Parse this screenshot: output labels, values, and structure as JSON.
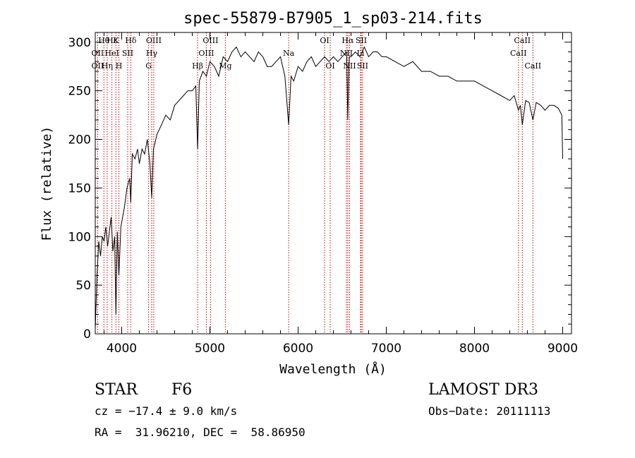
{
  "chart_data": {
    "type": "line",
    "title": "spec-55879-B7905_1_sp03-214.fits",
    "xlabel": "Wavelength (Å)",
    "ylabel": "Flux (relative)",
    "xlim": [
      3700,
      9100
    ],
    "ylim": [
      0,
      310
    ],
    "xticks": [
      4000,
      5000,
      6000,
      7000,
      8000,
      9000
    ],
    "yticks": [
      0,
      50,
      100,
      150,
      200,
      250,
      300
    ],
    "grid": false,
    "series": [
      {
        "x": [
          3700,
          3720,
          3740,
          3760,
          3780,
          3800,
          3820,
          3840,
          3860,
          3880,
          3900,
          3920,
          3934,
          3950,
          3968,
          3990,
          4010,
          4030,
          4060,
          4090,
          4102,
          4120,
          4150,
          4180,
          4200,
          4230,
          4260,
          4290,
          4320,
          4340,
          4360,
          4400,
          4450,
          4500,
          4550,
          4600,
          4650,
          4700,
          4750,
          4800,
          4840,
          4861,
          4880,
          4920,
          4960,
          5000,
          5050,
          5100,
          5150,
          5200,
          5250,
          5300,
          5350,
          5400,
          5450,
          5500,
          5550,
          5600,
          5650,
          5700,
          5750,
          5800,
          5850,
          5893,
          5920,
          5950,
          6000,
          6050,
          6100,
          6150,
          6200,
          6250,
          6300,
          6350,
          6400,
          6450,
          6500,
          6550,
          6563,
          6580,
          6600,
          6650,
          6700,
          6750,
          6800,
          6850,
          6900,
          6950,
          7000,
          7100,
          7200,
          7300,
          7400,
          7500,
          7600,
          7700,
          7800,
          7900,
          8000,
          8100,
          8200,
          8300,
          8400,
          8450,
          8498,
          8520,
          8542,
          8580,
          8620,
          8662,
          8700,
          8750,
          8800,
          8850,
          8900,
          8950,
          8990,
          9000
        ],
        "y": [
          5,
          60,
          95,
          80,
          100,
          95,
          110,
          90,
          105,
          120,
          85,
          100,
          20,
          105,
          60,
          110,
          120,
          130,
          150,
          160,
          135,
          185,
          180,
          190,
          175,
          190,
          185,
          200,
          175,
          140,
          190,
          205,
          215,
          225,
          220,
          235,
          240,
          245,
          250,
          250,
          255,
          190,
          260,
          270,
          265,
          280,
          275,
          265,
          285,
          280,
          290,
          295,
          285,
          290,
          285,
          280,
          290,
          285,
          275,
          275,
          280,
          285,
          265,
          215,
          265,
          260,
          275,
          270,
          280,
          285,
          275,
          280,
          285,
          280,
          285,
          280,
          285,
          290,
          220,
          285,
          285,
          290,
          285,
          295,
          285,
          290,
          290,
          285,
          285,
          280,
          275,
          280,
          270,
          270,
          265,
          265,
          260,
          260,
          260,
          255,
          250,
          245,
          240,
          245,
          230,
          235,
          215,
          240,
          238,
          220,
          238,
          235,
          230,
          235,
          235,
          232,
          225,
          180
        ]
      }
    ],
    "line_labels": [
      {
        "text": "Hθ",
        "x": 3798,
        "row": 0
      },
      {
        "text": "OII",
        "x": 3727,
        "row": 1
      },
      {
        "text": "OII",
        "x": 3727,
        "row": 2
      },
      {
        "text": "Hη",
        "x": 3835,
        "row": 2
      },
      {
        "text": "Hε",
        "x": 3890,
        "row": 0
      },
      {
        "text": "HeI",
        "x": 3889,
        "row": 1
      },
      {
        "text": "K",
        "x": 3934,
        "row": 0
      },
      {
        "text": "H",
        "x": 3968,
        "row": 2
      },
      {
        "text": "SII",
        "x": 4068,
        "row": 1
      },
      {
        "text": "Hδ",
        "x": 4102,
        "row": 0
      },
      {
        "text": "OIII",
        "x": 4363,
        "row": 0
      },
      {
        "text": "Hγ",
        "x": 4340,
        "row": 1
      },
      {
        "text": "G",
        "x": 4305,
        "row": 2
      },
      {
        "text": "OIII",
        "x": 5007,
        "row": 0
      },
      {
        "text": "OIII",
        "x": 4959,
        "row": 1
      },
      {
        "text": "Hβ",
        "x": 4861,
        "row": 2
      },
      {
        "text": "Mg",
        "x": 5175,
        "row": 2
      },
      {
        "text": "Na",
        "x": 5893,
        "row": 1
      },
      {
        "text": "OI",
        "x": 6300,
        "row": 0
      },
      {
        "text": "OI",
        "x": 6364,
        "row": 2
      },
      {
        "text": "Hα",
        "x": 6563,
        "row": 0
      },
      {
        "text": "NII",
        "x": 6548,
        "row": 1
      },
      {
        "text": "NII",
        "x": 6583,
        "row": 2
      },
      {
        "text": "SII",
        "x": 6716,
        "row": 0
      },
      {
        "text": "Li",
        "x": 6708,
        "row": 1
      },
      {
        "text": "SII",
        "x": 6731,
        "row": 2
      },
      {
        "text": "CaII",
        "x": 8542,
        "row": 0
      },
      {
        "text": "CaII",
        "x": 8498,
        "row": 1
      },
      {
        "text": "CaII",
        "x": 8662,
        "row": 2
      }
    ],
    "line_markers": [
      3727,
      3798,
      3835,
      3889,
      3934,
      3968,
      4068,
      4102,
      4305,
      4340,
      4363,
      4861,
      4959,
      5007,
      5175,
      5893,
      6300,
      6364,
      6548,
      6563,
      6583,
      6708,
      6716,
      6731,
      8498,
      8542,
      8662
    ]
  },
  "info": {
    "class_label": "STAR",
    "subclass": "F6",
    "survey": "LAMOST DR3",
    "redshift": "cz = −17.4 ± 9.0 km/s",
    "obs_date": "Obs−Date: 20111113",
    "coords": "RA =  31.96210, DEC =  58.86950"
  },
  "colors": {
    "line": "#000000",
    "marker": "#cc0000",
    "background": "#ffffff"
  }
}
